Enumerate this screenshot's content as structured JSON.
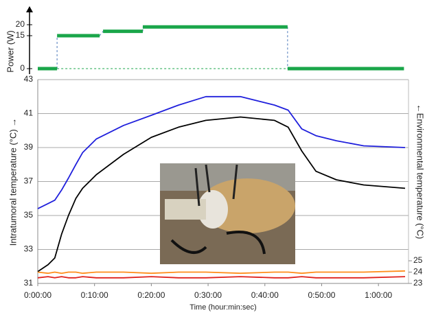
{
  "chart_data": [
    {
      "type": "step",
      "ylabel": "Power (W)",
      "ylim": [
        -2.5,
        25
      ],
      "yticks": [
        0,
        15,
        20
      ],
      "xlim": [
        0,
        65.3
      ],
      "color": "#1aa64a",
      "segments": [
        {
          "start": 0,
          "end": 3.4,
          "value": 0
        },
        {
          "start": 3.4,
          "end": 10.9,
          "value": 15
        },
        {
          "start": 11.5,
          "end": 18.5,
          "value": 17
        },
        {
          "start": 18.5,
          "end": 44.0,
          "value": 19
        },
        {
          "start": 44.0,
          "end": 64.5,
          "value": 0
        }
      ]
    },
    {
      "type": "line",
      "ylabel": "Intratumoral temperature (°C)  →",
      "y2label": "←Environmental temperature (°C)",
      "xlabel": "Time (hour:min:sec)",
      "xlim": [
        0,
        65.3
      ],
      "ylim": [
        31,
        43
      ],
      "y2lim": [
        23,
        41
      ],
      "grid": true,
      "xticks": [
        {
          "value": 0,
          "label": "0:00:00"
        },
        {
          "value": 10,
          "label": "0:10:00"
        },
        {
          "value": 20,
          "label": "0:20:00"
        },
        {
          "value": 30,
          "label": "0:30:00"
        },
        {
          "value": 40,
          "label": "0:40:00"
        },
        {
          "value": 50,
          "label": "0:50:00"
        },
        {
          "value": 60,
          "label": "1:00:00"
        }
      ],
      "yticks": [
        31,
        33,
        35,
        37,
        39,
        41,
        43
      ],
      "y2ticks": [
        23,
        24,
        25
      ],
      "x": [
        0,
        1.8,
        3.0,
        4.2,
        5.4,
        6.7,
        7.9,
        10.3,
        15.1,
        20,
        24.8,
        29.6,
        35.7,
        41.7,
        44.1,
        46.5,
        49,
        52.6,
        57.4,
        64.7
      ],
      "series": [
        {
          "color": "#1f1fdc",
          "values": [
            35.4,
            35.7,
            35.9,
            36.5,
            37.2,
            38.0,
            38.7,
            39.5,
            40.3,
            40.9,
            41.5,
            42.0,
            42.0,
            41.5,
            41.2,
            40.1,
            39.7,
            39.4,
            39.1,
            39.0
          ]
        },
        {
          "color": "#000000",
          "values": [
            31.7,
            32.1,
            32.5,
            33.9,
            35.0,
            36.0,
            36.6,
            37.4,
            38.6,
            39.6,
            40.2,
            40.6,
            40.8,
            40.6,
            40.2,
            38.8,
            37.6,
            37.1,
            36.8,
            36.6
          ]
        },
        {
          "color": "#ff8c1a",
          "axis": "y2",
          "values": [
            24.0,
            23.9,
            24.0,
            23.9,
            24.0,
            24.0,
            23.9,
            24.0,
            24.0,
            23.9,
            24.0,
            24.0,
            23.9,
            24.0,
            24.0,
            23.9,
            24.0,
            24.0,
            24.0,
            24.1
          ]
        },
        {
          "color": "#e0201b",
          "axis": "y2",
          "values": [
            23.5,
            23.6,
            23.5,
            23.6,
            23.5,
            23.5,
            23.6,
            23.5,
            23.5,
            23.6,
            23.5,
            23.5,
            23.6,
            23.5,
            23.5,
            23.6,
            23.5,
            23.5,
            23.5,
            23.6
          ]
        }
      ]
    }
  ]
}
